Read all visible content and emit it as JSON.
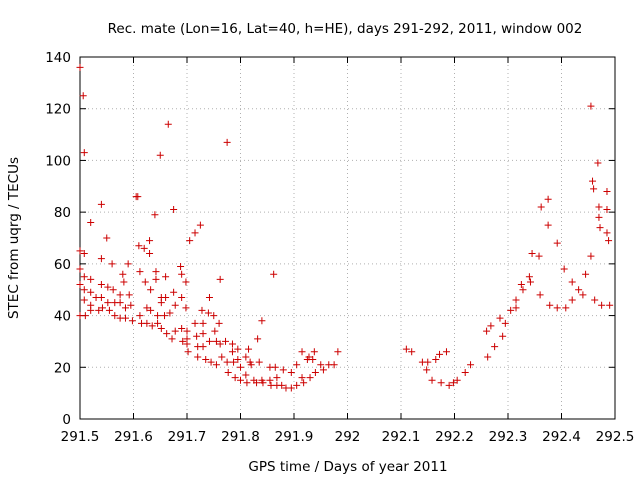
{
  "chart_data": {
    "type": "scatter",
    "title": "Rec. mate (Lon=16, Lat=40, h=HE), days 291-292, 2011, window 002",
    "xlabel": "GPS time / Days of year 2011",
    "ylabel": "STEC from uqrg / TECUs",
    "xlim": [
      291.5,
      292.5
    ],
    "ylim": [
      0,
      140
    ],
    "x_ticks": [
      "291.5",
      "291.6",
      "291.7",
      "291.8",
      "291.9",
      "292",
      "292.1",
      "292.2",
      "292.3",
      "292.4",
      "292.5"
    ],
    "y_ticks": [
      "0",
      "20",
      "40",
      "60",
      "80",
      "100",
      "120",
      "140"
    ],
    "grid": true,
    "legend": "none",
    "marker": "+",
    "color": "#cc0000",
    "points": [
      [
        291.5,
        136
      ],
      [
        291.5,
        65
      ],
      [
        291.5,
        58
      ],
      [
        291.5,
        52
      ],
      [
        291.5,
        40
      ],
      [
        291.506,
        125
      ],
      [
        291.508,
        103
      ],
      [
        291.508,
        64
      ],
      [
        291.508,
        55
      ],
      [
        291.508,
        50
      ],
      [
        291.508,
        46
      ],
      [
        291.51,
        40
      ],
      [
        291.52,
        76
      ],
      [
        291.52,
        54
      ],
      [
        291.52,
        49
      ],
      [
        291.52,
        44
      ],
      [
        291.52,
        42
      ],
      [
        291.53,
        47
      ],
      [
        291.535,
        42
      ],
      [
        291.54,
        83
      ],
      [
        291.54,
        62
      ],
      [
        291.54,
        52
      ],
      [
        291.54,
        47
      ],
      [
        291.542,
        43
      ],
      [
        291.55,
        70
      ],
      [
        291.552,
        51
      ],
      [
        291.552,
        45
      ],
      [
        291.555,
        42
      ],
      [
        291.56,
        60
      ],
      [
        291.562,
        50
      ],
      [
        291.565,
        45
      ],
      [
        291.565,
        40
      ],
      [
        291.575,
        48
      ],
      [
        291.575,
        45
      ],
      [
        291.575,
        39
      ],
      [
        291.58,
        56
      ],
      [
        291.582,
        53
      ],
      [
        291.585,
        43
      ],
      [
        291.585,
        39
      ],
      [
        291.59,
        60
      ],
      [
        291.592,
        48
      ],
      [
        291.595,
        44
      ],
      [
        291.598,
        38
      ],
      [
        291.605,
        86
      ],
      [
        291.608,
        86
      ],
      [
        291.61,
        67
      ],
      [
        291.612,
        57
      ],
      [
        291.612,
        40
      ],
      [
        291.615,
        37
      ],
      [
        291.62,
        66
      ],
      [
        291.622,
        53
      ],
      [
        291.625,
        43
      ],
      [
        291.625,
        37
      ],
      [
        291.63,
        69
      ],
      [
        291.63,
        64
      ],
      [
        291.632,
        50
      ],
      [
        291.632,
        42
      ],
      [
        291.635,
        36
      ],
      [
        291.64,
        79
      ],
      [
        291.642,
        57
      ],
      [
        291.642,
        54
      ],
      [
        291.645,
        40
      ],
      [
        291.645,
        37
      ],
      [
        291.65,
        102
      ],
      [
        291.652,
        47
      ],
      [
        291.652,
        45
      ],
      [
        291.652,
        35
      ],
      [
        291.658,
        40
      ],
      [
        291.66,
        55
      ],
      [
        291.66,
        47
      ],
      [
        291.662,
        33
      ],
      [
        291.665,
        114
      ],
      [
        291.668,
        41
      ],
      [
        291.672,
        31
      ],
      [
        291.675,
        81
      ],
      [
        291.675,
        49
      ],
      [
        291.678,
        44
      ],
      [
        291.678,
        34
      ],
      [
        291.688,
        59
      ],
      [
        291.69,
        56
      ],
      [
        291.69,
        47
      ],
      [
        291.69,
        35
      ],
      [
        291.692,
        30
      ],
      [
        291.698,
        53
      ],
      [
        291.698,
        43
      ],
      [
        291.7,
        34
      ],
      [
        291.7,
        31
      ],
      [
        291.7,
        29
      ],
      [
        291.702,
        26
      ],
      [
        291.705,
        69
      ],
      [
        291.715,
        72
      ],
      [
        291.715,
        37
      ],
      [
        291.718,
        32
      ],
      [
        291.72,
        28
      ],
      [
        291.72,
        24
      ],
      [
        291.725,
        75
      ],
      [
        291.728,
        42
      ],
      [
        291.73,
        37
      ],
      [
        291.73,
        33
      ],
      [
        291.73,
        28
      ],
      [
        291.735,
        23
      ],
      [
        291.742,
        47
      ],
      [
        291.74,
        41
      ],
      [
        291.742,
        30
      ],
      [
        291.745,
        22
      ],
      [
        291.75,
        40
      ],
      [
        291.752,
        34
      ],
      [
        291.755,
        30
      ],
      [
        291.755,
        21
      ],
      [
        291.762,
        54
      ],
      [
        291.76,
        37
      ],
      [
        291.762,
        29
      ],
      [
        291.765,
        24
      ],
      [
        291.775,
        107
      ],
      [
        291.772,
        30
      ],
      [
        291.775,
        22
      ],
      [
        291.777,
        18
      ],
      [
        291.785,
        29
      ],
      [
        291.785,
        26
      ],
      [
        291.787,
        22
      ],
      [
        291.79,
        16
      ],
      [
        291.795,
        27
      ],
      [
        291.795,
        23
      ],
      [
        291.8,
        20
      ],
      [
        291.8,
        15
      ],
      [
        291.81,
        24
      ],
      [
        291.81,
        17
      ],
      [
        291.812,
        14
      ],
      [
        291.815,
        27
      ],
      [
        291.818,
        22
      ],
      [
        291.832,
        31
      ],
      [
        291.82,
        21
      ],
      [
        291.825,
        15
      ],
      [
        291.83,
        14
      ],
      [
        291.84,
        38
      ],
      [
        291.835,
        22
      ],
      [
        291.84,
        15
      ],
      [
        291.842,
        14
      ],
      [
        291.855,
        20
      ],
      [
        291.855,
        15
      ],
      [
        291.857,
        13
      ],
      [
        291.862,
        56
      ],
      [
        291.865,
        20
      ],
      [
        291.868,
        16
      ],
      [
        291.868,
        13
      ],
      [
        291.88,
        19
      ],
      [
        291.877,
        13
      ],
      [
        291.885,
        12
      ],
      [
        291.895,
        18
      ],
      [
        291.895,
        12
      ],
      [
        291.905,
        21
      ],
      [
        291.905,
        13
      ],
      [
        291.915,
        26
      ],
      [
        291.915,
        16
      ],
      [
        291.918,
        14
      ],
      [
        291.925,
        23
      ],
      [
        291.928,
        24
      ],
      [
        291.93,
        16
      ],
      [
        291.938,
        26
      ],
      [
        291.935,
        23
      ],
      [
        291.94,
        18
      ],
      [
        291.95,
        21
      ],
      [
        291.955,
        19
      ],
      [
        291.965,
        21
      ],
      [
        291.975,
        21
      ],
      [
        291.982,
        26
      ],
      [
        292.11,
        27
      ],
      [
        292.12,
        26
      ],
      [
        292.14,
        22
      ],
      [
        292.148,
        19
      ],
      [
        292.15,
        22
      ],
      [
        292.158,
        15
      ],
      [
        292.165,
        23
      ],
      [
        292.172,
        25
      ],
      [
        292.175,
        14
      ],
      [
        292.185,
        26
      ],
      [
        292.19,
        13
      ],
      [
        292.198,
        14
      ],
      [
        292.205,
        15
      ],
      [
        292.22,
        18
      ],
      [
        292.23,
        21
      ],
      [
        292.26,
        34
      ],
      [
        292.262,
        24
      ],
      [
        292.268,
        36
      ],
      [
        292.275,
        28
      ],
      [
        292.285,
        39
      ],
      [
        292.29,
        32
      ],
      [
        292.295,
        37
      ],
      [
        292.305,
        42
      ],
      [
        292.315,
        46
      ],
      [
        292.315,
        43
      ],
      [
        292.325,
        52
      ],
      [
        292.328,
        50
      ],
      [
        292.34,
        55
      ],
      [
        292.342,
        53
      ],
      [
        292.345,
        64
      ],
      [
        292.358,
        63
      ],
      [
        292.36,
        48
      ],
      [
        292.362,
        82
      ],
      [
        292.375,
        85
      ],
      [
        292.375,
        75
      ],
      [
        292.378,
        44
      ],
      [
        292.392,
        68
      ],
      [
        292.392,
        43
      ],
      [
        292.405,
        58
      ],
      [
        292.408,
        43
      ],
      [
        292.42,
        53
      ],
      [
        292.42,
        46
      ],
      [
        292.432,
        50
      ],
      [
        292.44,
        48
      ],
      [
        292.445,
        56
      ],
      [
        292.455,
        63
      ],
      [
        292.455,
        121
      ],
      [
        292.458,
        92
      ],
      [
        292.46,
        89
      ],
      [
        292.462,
        46
      ],
      [
        292.468,
        99
      ],
      [
        292.47,
        82
      ],
      [
        292.47,
        78
      ],
      [
        292.472,
        74
      ],
      [
        292.475,
        44
      ],
      [
        292.485,
        88
      ],
      [
        292.485,
        81
      ],
      [
        292.485,
        72
      ],
      [
        292.488,
        69
      ],
      [
        292.49,
        44
      ]
    ]
  }
}
